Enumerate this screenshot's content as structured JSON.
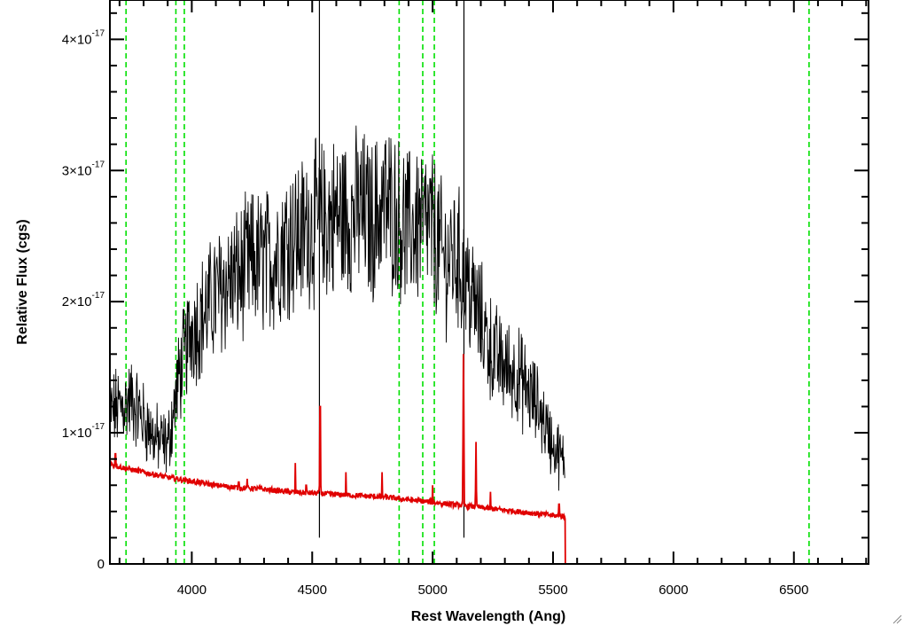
{
  "chart_data": {
    "type": "line",
    "xlabel": "Rest Wavelength (Ang)",
    "ylabel": "Relative Flux (cgs)",
    "xlim": [
      3660,
      6810
    ],
    "ylim": [
      0,
      4.3e-17
    ],
    "x_ticks": [
      {
        "value": 4000,
        "label": "4000"
      },
      {
        "value": 4500,
        "label": "4500"
      },
      {
        "value": 5000,
        "label": "5000"
      },
      {
        "value": 5500,
        "label": "5500"
      },
      {
        "value": 6000,
        "label": "6000"
      },
      {
        "value": 6500,
        "label": "6500"
      }
    ],
    "y_ticks": [
      {
        "value": 0,
        "label": "0"
      },
      {
        "value": 1e-17,
        "label": "1×10",
        "exp": "-17"
      },
      {
        "value": 2e-17,
        "label": "2×10",
        "exp": "-17"
      },
      {
        "value": 3e-17,
        "label": "3×10",
        "exp": "-17"
      },
      {
        "value": 4e-17,
        "label": "4×10",
        "exp": "-17"
      }
    ],
    "grid": false,
    "vertical_lines": [
      {
        "x": 3727,
        "color": "#00e000",
        "style": "dashed"
      },
      {
        "x": 3934,
        "color": "#00e000",
        "style": "dashed"
      },
      {
        "x": 3969,
        "color": "#00e000",
        "style": "dashed"
      },
      {
        "x": 4861,
        "color": "#00e000",
        "style": "dashed"
      },
      {
        "x": 4959,
        "color": "#00e000",
        "style": "dashed"
      },
      {
        "x": 5007,
        "color": "#00e000",
        "style": "dashed"
      },
      {
        "x": 6563,
        "color": "#00e000",
        "style": "dashed"
      }
    ],
    "series": [
      {
        "color": "#000000",
        "style": "noisy-spectrum",
        "x": [
          3660,
          3700,
          3750,
          3800,
          3850,
          3900,
          3950,
          4000,
          4050,
          4100,
          4150,
          4200,
          4250,
          4300,
          4350,
          4400,
          4450,
          4500,
          4550,
          4600,
          4650,
          4700,
          4750,
          4800,
          4850,
          4900,
          4950,
          5000,
          5050,
          5100,
          5150,
          5200,
          5250,
          5300,
          5350,
          5400,
          5450,
          5500,
          5550
        ],
        "y": [
          1.15e-17,
          1.2e-17,
          1.25e-17,
          1.1e-17,
          9.5e-18,
          9e-18,
          1.45e-17,
          1.8e-17,
          1.9e-17,
          2.05e-17,
          2.15e-17,
          2.2e-17,
          2.3e-17,
          2.3e-17,
          2.35e-17,
          2.5e-17,
          2.5e-17,
          2.6e-17,
          2.6e-17,
          2.65e-17,
          2.65e-17,
          2.7e-17,
          2.6e-17,
          2.75e-17,
          2.65e-17,
          2.55e-17,
          2.6e-17,
          2.55e-17,
          2.3e-17,
          2.35e-17,
          2.1e-17,
          1.85e-17,
          1.6e-17,
          1.5e-17,
          1.45e-17,
          1.3e-17,
          1.15e-17,
          9e-18,
          7.5e-18
        ]
      },
      {
        "color": "#000000",
        "style": "spike",
        "x": [
          4530,
          5130
        ],
        "y": [
          4.5e-17,
          4.3e-17
        ]
      },
      {
        "color": "#e00000",
        "style": "model-with-lines",
        "x": [
          3660,
          3700,
          3800,
          3900,
          4000,
          4100,
          4200,
          4300,
          4400,
          4500,
          4600,
          4700,
          4800,
          4900,
          5000,
          5100,
          5200,
          5300,
          5400,
          5500,
          5550,
          5551,
          6810
        ],
        "y": [
          7.7e-18,
          7.4e-18,
          7e-18,
          6.6e-18,
          6.3e-18,
          6e-18,
          5.8e-18,
          5.7e-18,
          5.5e-18,
          5.4e-18,
          5.3e-18,
          5.2e-18,
          5.1e-18,
          4.9e-18,
          4.7e-18,
          4.5e-18,
          4.3e-18,
          4.1e-18,
          3.9e-18,
          3.7e-18,
          3.6e-18,
          0,
          0
        ],
        "emission_lines": [
          {
            "x": 3683,
            "peak": 1.05e-17
          },
          {
            "x": 4195,
            "peak": 7.8e-18
          },
          {
            "x": 4230,
            "peak": 6.5e-18
          },
          {
            "x": 4335,
            "peak": 6e-18
          },
          {
            "x": 4430,
            "peak": 7.7e-18
          },
          {
            "x": 4475,
            "peak": 7.5e-18
          },
          {
            "x": 4533,
            "peak": 1.5e-17
          },
          {
            "x": 4640,
            "peak": 7e-18
          },
          {
            "x": 4790,
            "peak": 7e-18
          },
          {
            "x": 5000,
            "peak": 6e-18
          },
          {
            "x": 5128,
            "peak": 1.6e-17
          },
          {
            "x": 5180,
            "peak": 9.3e-18
          },
          {
            "x": 5240,
            "peak": 5.5e-18
          },
          {
            "x": 5525,
            "peak": 5.7e-18
          }
        ]
      }
    ]
  }
}
